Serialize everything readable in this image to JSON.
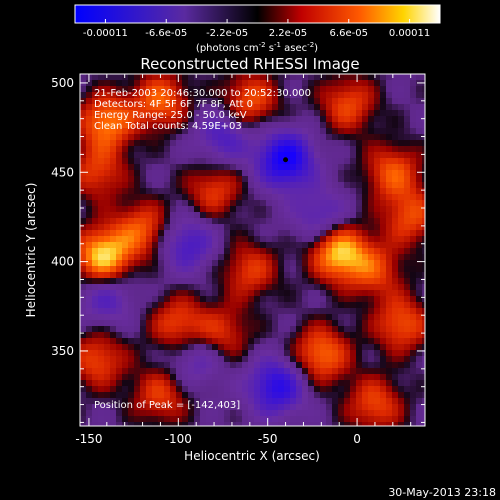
{
  "chart_data": {
    "type": "heatmap",
    "title": "Reconstructed RHESSI Image",
    "xlabel": "Heliocentric X (arcsec)",
    "ylabel": "Heliocentric Y (arcsec)",
    "xlim": [
      -155,
      38
    ],
    "ylim": [
      308,
      505
    ],
    "xticks": [
      -150,
      -100,
      -50,
      0
    ],
    "yticks": [
      350,
      400,
      450,
      500
    ],
    "colorbar": {
      "range": [
        -0.00011,
        0.00011
      ],
      "tick_labels": [
        "-0.00011",
        "-6.6e-05",
        "-2.2e-05",
        "2.2e-05",
        "6.6e-05",
        "0.00011"
      ],
      "label": "(photons cm",
      "label_sup1": "-2",
      "label_mid": " s",
      "label_sup2": "-1",
      "label_end": " asec",
      "label_sup3": "-2",
      "label_close": ")"
    },
    "annotations": [
      "21-Feb-2003 20:46:30.000 to 20:52:30.000",
      "Detectors: 4F 5F 6F 7F 8F, Att 0",
      "Energy Range: 25.0 - 50.0 keV",
      "Clean     Total counts: 4.59E+03"
    ],
    "peak_label": "Position of Peak = [-142,403]",
    "peak_marker": [
      -40,
      457
    ],
    "sources": [
      {
        "x": -142,
        "y": 403,
        "amp": 1.0
      },
      {
        "x": -10,
        "y": 405,
        "amp": 0.95
      },
      {
        "x": -140,
        "y": 478,
        "amp": 0.75
      },
      {
        "x": -110,
        "y": 490,
        "amp": 0.65
      },
      {
        "x": -60,
        "y": 490,
        "amp": 0.6
      },
      {
        "x": -5,
        "y": 488,
        "amp": 0.55
      },
      {
        "x": 20,
        "y": 450,
        "amp": 0.6
      },
      {
        "x": 30,
        "y": 425,
        "amp": 0.55
      },
      {
        "x": -120,
        "y": 418,
        "amp": 0.6
      },
      {
        "x": -80,
        "y": 440,
        "amp": 0.5
      },
      {
        "x": -145,
        "y": 450,
        "amp": 0.5
      },
      {
        "x": -100,
        "y": 365,
        "amp": 0.55
      },
      {
        "x": -145,
        "y": 345,
        "amp": 0.55
      },
      {
        "x": -20,
        "y": 348,
        "amp": 0.7
      },
      {
        "x": 25,
        "y": 365,
        "amp": 0.6
      },
      {
        "x": 10,
        "y": 395,
        "amp": 0.5
      },
      {
        "x": -75,
        "y": 360,
        "amp": 0.45
      },
      {
        "x": -110,
        "y": 325,
        "amp": 0.5
      },
      {
        "x": 10,
        "y": 320,
        "amp": 0.55
      },
      {
        "x": -60,
        "y": 395,
        "amp": 0.5
      },
      {
        "x": -40,
        "y": 457,
        "amp": -1.0
      },
      {
        "x": -45,
        "y": 330,
        "amp": -0.8
      },
      {
        "x": -95,
        "y": 410,
        "amp": -0.55
      },
      {
        "x": -75,
        "y": 470,
        "amp": -0.5
      },
      {
        "x": -140,
        "y": 380,
        "amp": -0.45
      },
      {
        "x": -20,
        "y": 425,
        "amp": -0.45
      },
      {
        "x": -90,
        "y": 345,
        "amp": -0.4
      }
    ]
  },
  "footer": {
    "date": "30-May-2013 23:18"
  }
}
